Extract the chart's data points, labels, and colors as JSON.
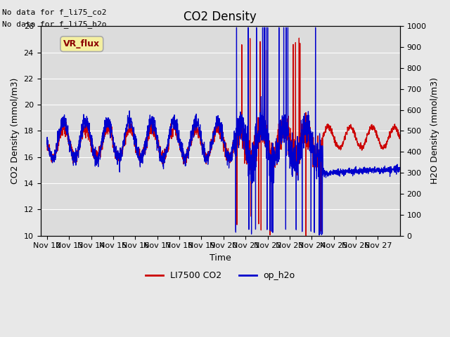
{
  "title": "CO2 Density",
  "xlabel": "Time",
  "ylabel_left": "CO2 Density (mmol/m3)",
  "ylabel_right": "H2O Density (mmol/m3)",
  "ylim_left": [
    10,
    26
  ],
  "ylim_right": [
    0,
    1000
  ],
  "yticks_left": [
    10,
    12,
    14,
    16,
    18,
    20,
    22,
    24,
    26
  ],
  "yticks_right": [
    0,
    100,
    200,
    300,
    400,
    500,
    600,
    700,
    800,
    900,
    1000
  ],
  "text_top_left": [
    "No data for f_li75_co2",
    "No data for f_li75_h2o"
  ],
  "legend_entries": [
    "LI7500 CO2",
    "op_h2o"
  ],
  "vr_flux_label": "VR_flux",
  "background_color": "#e8e8e8",
  "axes_bg_color": "#dcdcdc",
  "color_red": "#cc0000",
  "color_blue": "#0000cc",
  "xticklabels": [
    "Nov 12",
    "Nov 13",
    "Nov 14",
    "Nov 15",
    "Nov 16",
    "Nov 17",
    "Nov 18",
    "Nov 19",
    "Nov 20",
    "Nov 21",
    "Nov 22",
    "Nov 23",
    "Nov 24",
    "Nov 25",
    "Nov 26",
    "Nov 27"
  ],
  "xtick_positions": [
    0,
    1,
    2,
    3,
    4,
    5,
    6,
    7,
    8,
    9,
    10,
    11,
    12,
    13,
    14,
    15
  ]
}
